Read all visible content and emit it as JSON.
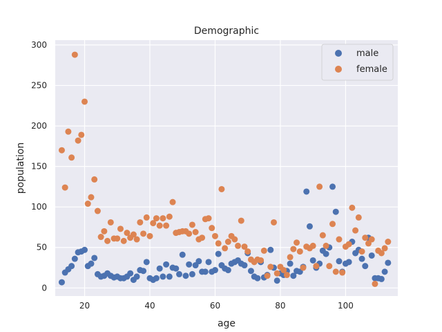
{
  "chart_data": {
    "type": "scatter",
    "title": "Demographic",
    "xlabel": "age",
    "ylabel": "population",
    "xlim": [
      11,
      116
    ],
    "ylim": [
      -10,
      306
    ],
    "xticks": [
      20,
      40,
      60,
      80,
      100
    ],
    "yticks": [
      0,
      50,
      100,
      150,
      200,
      250,
      300
    ],
    "grid": true,
    "legend_position": "top-right",
    "series": [
      {
        "name": "male",
        "color": "#4c72b0",
        "x": [
          13,
          14,
          15,
          16,
          17,
          18,
          19,
          20,
          21,
          22,
          23,
          24,
          25,
          26,
          27,
          28,
          29,
          30,
          31,
          32,
          33,
          34,
          35,
          36,
          37,
          38,
          39,
          40,
          41,
          42,
          43,
          44,
          45,
          46,
          47,
          48,
          49,
          50,
          51,
          52,
          53,
          54,
          55,
          56,
          57,
          58,
          59,
          60,
          61,
          62,
          63,
          64,
          65,
          66,
          67,
          68,
          69,
          70,
          71,
          72,
          73,
          74,
          75,
          76,
          77,
          78,
          79,
          80,
          81,
          82,
          83,
          84,
          85,
          86,
          87,
          88,
          89,
          90,
          91,
          92,
          93,
          94,
          95,
          96,
          97,
          98,
          99,
          100,
          101,
          102,
          103,
          104,
          105,
          106,
          107,
          108,
          109,
          110,
          111,
          112,
          113
        ],
        "y": [
          7,
          19,
          23,
          27,
          36,
          44,
          45,
          47,
          27,
          30,
          37,
          17,
          14,
          15,
          18,
          15,
          13,
          14,
          12,
          12,
          14,
          18,
          10,
          14,
          22,
          21,
          32,
          12,
          10,
          12,
          24,
          14,
          29,
          14,
          25,
          24,
          17,
          41,
          15,
          29,
          17,
          28,
          33,
          20,
          20,
          32,
          20,
          22,
          42,
          28,
          24,
          22,
          30,
          32,
          34,
          30,
          28,
          43,
          21,
          14,
          12,
          32,
          13,
          16,
          47,
          25,
          9,
          18,
          16,
          21,
          30,
          15,
          21,
          20,
          26,
          119,
          76,
          34,
          25,
          30,
          46,
          42,
          50,
          125,
          94,
          33,
          20,
          30,
          32,
          57,
          43,
          47,
          36,
          27,
          62,
          40,
          12,
          12,
          11,
          20,
          31
        ]
      },
      {
        "name": "female",
        "color": "#dd8452",
        "x": [
          13,
          14,
          15,
          16,
          17,
          18,
          19,
          20,
          21,
          22,
          23,
          24,
          25,
          26,
          27,
          28,
          29,
          30,
          31,
          32,
          33,
          34,
          35,
          36,
          37,
          38,
          39,
          40,
          41,
          42,
          43,
          44,
          45,
          46,
          47,
          48,
          49,
          50,
          51,
          52,
          53,
          54,
          55,
          56,
          57,
          58,
          59,
          60,
          61,
          62,
          63,
          64,
          65,
          66,
          67,
          68,
          69,
          70,
          71,
          72,
          73,
          74,
          75,
          76,
          77,
          78,
          79,
          80,
          81,
          82,
          83,
          84,
          85,
          86,
          87,
          88,
          89,
          90,
          91,
          92,
          93,
          94,
          95,
          96,
          97,
          98,
          99,
          100,
          101,
          102,
          103,
          104,
          105,
          106,
          107,
          108,
          109,
          110,
          111,
          112,
          113
        ],
        "y": [
          170,
          124,
          193,
          161,
          288,
          182,
          189,
          230,
          104,
          112,
          134,
          95,
          63,
          70,
          58,
          81,
          61,
          61,
          73,
          58,
          68,
          62,
          66,
          60,
          81,
          67,
          87,
          64,
          80,
          86,
          77,
          86,
          77,
          88,
          106,
          68,
          69,
          70,
          70,
          67,
          78,
          69,
          60,
          62,
          85,
          86,
          74,
          64,
          55,
          122,
          49,
          57,
          64,
          60,
          52,
          83,
          51,
          45,
          35,
          32,
          35,
          34,
          46,
          15,
          26,
          81,
          18,
          26,
          22,
          16,
          38,
          48,
          56,
          45,
          25,
          51,
          49,
          52,
          27,
          125,
          65,
          52,
          27,
          79,
          20,
          60,
          19,
          51,
          54,
          99,
          71,
          87,
          45,
          62,
          55,
          60,
          5,
          46,
          43,
          49,
          57
        ]
      }
    ]
  }
}
